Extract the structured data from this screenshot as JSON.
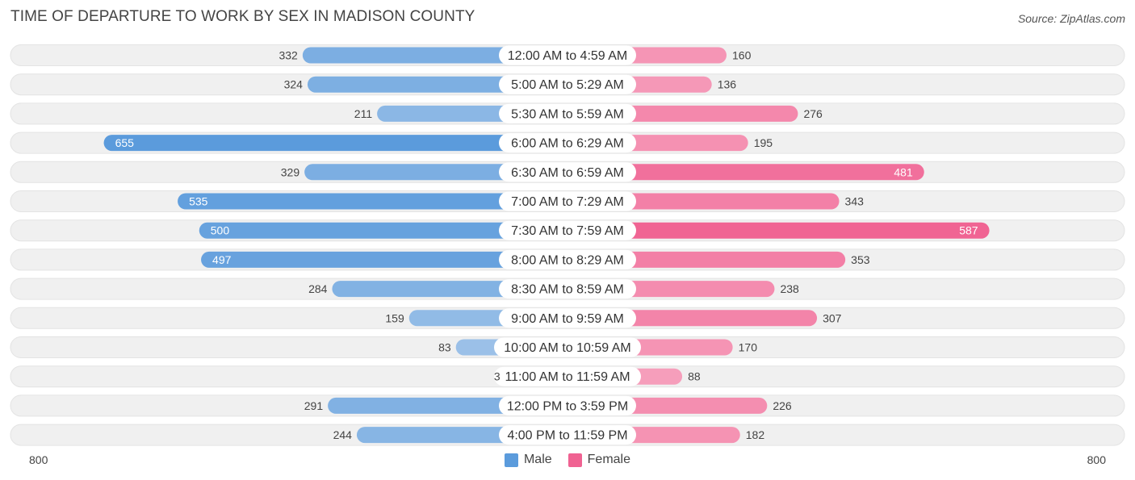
{
  "title": "TIME OF DEPARTURE TO WORK BY SEX IN MADISON COUNTY",
  "source": "Source: ZipAtlas.com",
  "colors": {
    "male": "#5b9bdc",
    "male_light": "#a5c6ea",
    "female": "#f06292",
    "female_light": "#f7a8c2",
    "track": "#f0f0f0"
  },
  "legend": {
    "male": "Male",
    "female": "Female"
  },
  "axis": {
    "left_label": "800",
    "right_label": "800"
  },
  "chart_data": {
    "type": "bar",
    "orientation": "horizontal-diverging",
    "title": "TIME OF DEPARTURE TO WORK BY SEX IN MADISON COUNTY",
    "categories": [
      "12:00 AM to 4:59 AM",
      "5:00 AM to 5:29 AM",
      "5:30 AM to 5:59 AM",
      "6:00 AM to 6:29 AM",
      "6:30 AM to 6:59 AM",
      "7:00 AM to 7:29 AM",
      "7:30 AM to 7:59 AM",
      "8:00 AM to 8:29 AM",
      "8:30 AM to 8:59 AM",
      "9:00 AM to 9:59 AM",
      "10:00 AM to 10:59 AM",
      "11:00 AM to 11:59 AM",
      "12:00 PM to 3:59 PM",
      "4:00 PM to 11:59 PM"
    ],
    "series": [
      {
        "name": "Male",
        "values": [
          332,
          324,
          211,
          655,
          329,
          535,
          500,
          497,
          284,
          159,
          83,
          3,
          291,
          244
        ]
      },
      {
        "name": "Female",
        "values": [
          160,
          136,
          276,
          195,
          481,
          343,
          587,
          353,
          238,
          307,
          170,
          88,
          226,
          182
        ]
      }
    ],
    "xlim": [
      -800,
      800
    ],
    "legend_position": "bottom-center",
    "grid": false
  }
}
